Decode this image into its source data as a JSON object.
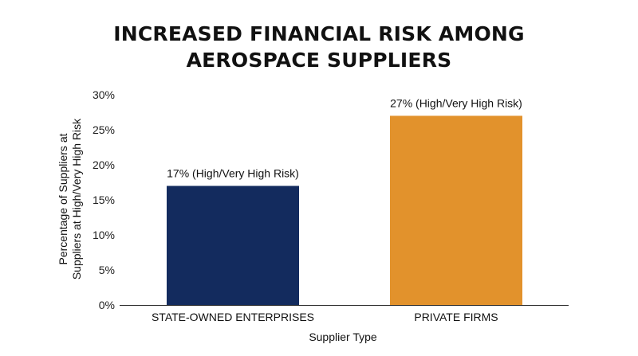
{
  "chart_data": {
    "type": "bar",
    "title_lines": [
      "INCREASED FINANCIAL RISK AMONG",
      "AEROSPACE SUPPLIERS"
    ],
    "categories": [
      "STATE-OWNED ENTERPRISES",
      "PRIVATE FIRMS"
    ],
    "values": [
      17,
      27
    ],
    "data_labels": [
      "17% (High/Very High Risk)",
      "27% (High/Very High Risk)"
    ],
    "colors": [
      "#132b5e",
      "#e2922c"
    ],
    "xlabel": "Supplier Type",
    "ylabel_lines": [
      "Percentage of Suppliers at",
      "Suppliers at High/Very High Risk"
    ],
    "ylim": [
      0,
      30
    ],
    "yticks": [
      0,
      5,
      10,
      15,
      20,
      25,
      30
    ],
    "ytick_labels": [
      "0%",
      "5%",
      "10%",
      "15%",
      "20%",
      "25%",
      "30%"
    ],
    "grid": false,
    "legend": "none"
  }
}
